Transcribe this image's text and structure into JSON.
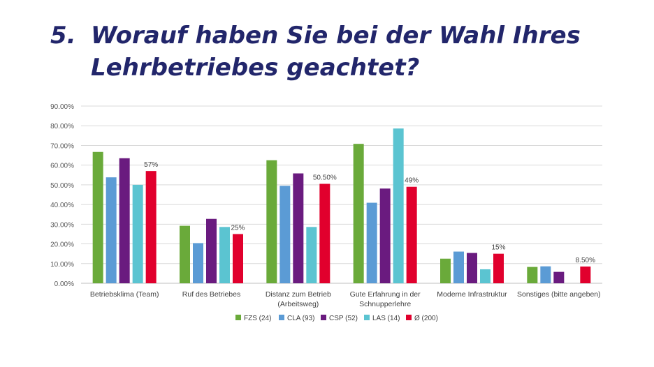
{
  "slide": {
    "number": "5.",
    "title": "Worauf haben Sie bei der Wahl Ihres Lehrbetriebes geachtet?"
  },
  "chart_data": {
    "type": "bar",
    "title": "",
    "xlabel": "",
    "ylabel": "",
    "ylim": [
      0,
      90
    ],
    "y_ticks": [
      "0.00%",
      "10.00%",
      "20.00%",
      "30.00%",
      "40.00%",
      "50.00%",
      "60.00%",
      "70.00%",
      "80.00%",
      "90.00%"
    ],
    "grid": true,
    "legend_position": "bottom",
    "categories": [
      [
        "Betriebsklima (Team)"
      ],
      [
        "Ruf des Betriebes"
      ],
      [
        "Distanz zum Betrieb",
        "(Arbeitsweg)"
      ],
      [
        "Gute Erfahrung in der",
        "Schnupperlehre"
      ],
      [
        "Moderne Infrastruktur"
      ],
      [
        "Sonstiges (bitte angeben)"
      ]
    ],
    "series": [
      {
        "name": "FZS (24)",
        "color": "#6aaa3a",
        "values": [
          66.7,
          29.2,
          62.5,
          70.8,
          12.5,
          8.3
        ]
      },
      {
        "name": "CLA (93)",
        "color": "#5b9bd5",
        "values": [
          53.8,
          20.4,
          49.5,
          40.9,
          16.1,
          8.6
        ]
      },
      {
        "name": "CSP (52)",
        "color": "#6a1b7f",
        "values": [
          63.5,
          32.7,
          55.8,
          48.1,
          15.4,
          5.8
        ]
      },
      {
        "name": "LAS (14)",
        "color": "#5bc4d1",
        "values": [
          50.0,
          28.6,
          28.6,
          78.6,
          7.1,
          0
        ]
      },
      {
        "name": "Ø (200)",
        "color": "#e1002d",
        "values": [
          57,
          25,
          50.5,
          49,
          15,
          8.5
        ],
        "data_labels": [
          "57%",
          "25%",
          "50.50%",
          "49%",
          "15%",
          "8.50%"
        ]
      }
    ]
  }
}
